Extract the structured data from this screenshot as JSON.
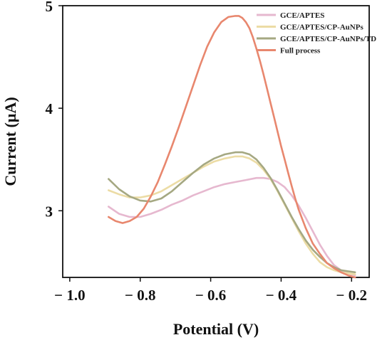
{
  "chart_data": {
    "type": "line",
    "xlabel": "Potential (V)",
    "ylabel": "Current (µA)",
    "xlim": [
      -1.02,
      -0.15
    ],
    "ylim": [
      2.35,
      5.0
    ],
    "x_ticks": [
      -1.0,
      -0.8,
      -0.6,
      -0.4,
      -0.2
    ],
    "x_tick_labels": [
      "− 1.0",
      "− 0.8",
      "− 0.6",
      "− 0.4",
      "− 0.2"
    ],
    "y_ticks": [
      3,
      4,
      5
    ],
    "y_tick_labels": [
      "3",
      "4",
      "5"
    ],
    "legend_position": "top-right",
    "grid": false,
    "series": [
      {
        "name": "GCE/APTES",
        "color": "#e6b8cf",
        "x": [
          -0.89,
          -0.86,
          -0.83,
          -0.8,
          -0.77,
          -0.74,
          -0.71,
          -0.68,
          -0.65,
          -0.62,
          -0.59,
          -0.56,
          -0.53,
          -0.5,
          -0.47,
          -0.45,
          -0.43,
          -0.41,
          -0.39,
          -0.37,
          -0.35,
          -0.33,
          -0.31,
          -0.29,
          -0.27,
          -0.25,
          -0.23,
          -0.21,
          -0.19
        ],
        "y": [
          3.04,
          2.97,
          2.94,
          2.94,
          2.97,
          3.01,
          3.06,
          3.1,
          3.15,
          3.19,
          3.23,
          3.26,
          3.28,
          3.3,
          3.32,
          3.32,
          3.31,
          3.28,
          3.23,
          3.15,
          3.05,
          2.93,
          2.8,
          2.67,
          2.56,
          2.47,
          2.42,
          2.39,
          2.37
        ]
      },
      {
        "name": "GCE/APTES/CP-AuNPs",
        "color": "#ecdca5",
        "x": [
          -0.89,
          -0.86,
          -0.83,
          -0.8,
          -0.77,
          -0.74,
          -0.71,
          -0.68,
          -0.65,
          -0.62,
          -0.59,
          -0.56,
          -0.53,
          -0.51,
          -0.49,
          -0.47,
          -0.45,
          -0.43,
          -0.41,
          -0.39,
          -0.37,
          -0.35,
          -0.33,
          -0.31,
          -0.29,
          -0.27,
          -0.25,
          -0.23,
          -0.21,
          -0.19
        ],
        "y": [
          3.2,
          3.16,
          3.13,
          3.13,
          3.15,
          3.19,
          3.25,
          3.31,
          3.37,
          3.43,
          3.48,
          3.51,
          3.53,
          3.53,
          3.51,
          3.47,
          3.4,
          3.31,
          3.19,
          3.06,
          2.93,
          2.8,
          2.68,
          2.58,
          2.5,
          2.45,
          2.42,
          2.4,
          2.39,
          2.38
        ]
      },
      {
        "name": "GCE/APTES/CP-AuNPs/TD",
        "color": "#a5a882",
        "x": [
          -0.89,
          -0.86,
          -0.83,
          -0.8,
          -0.77,
          -0.74,
          -0.71,
          -0.68,
          -0.65,
          -0.62,
          -0.59,
          -0.56,
          -0.53,
          -0.51,
          -0.49,
          -0.47,
          -0.45,
          -0.43,
          -0.41,
          -0.39,
          -0.37,
          -0.35,
          -0.33,
          -0.31,
          -0.29,
          -0.27,
          -0.25,
          -0.23,
          -0.21,
          -0.19
        ],
        "y": [
          3.31,
          3.21,
          3.14,
          3.1,
          3.09,
          3.12,
          3.19,
          3.28,
          3.37,
          3.45,
          3.51,
          3.55,
          3.57,
          3.57,
          3.55,
          3.5,
          3.42,
          3.32,
          3.2,
          3.07,
          2.94,
          2.82,
          2.71,
          2.62,
          2.55,
          2.49,
          2.45,
          2.42,
          2.41,
          2.4
        ]
      },
      {
        "name": "Full process",
        "color": "#e8876e",
        "x": [
          -0.89,
          -0.87,
          -0.85,
          -0.83,
          -0.81,
          -0.79,
          -0.77,
          -0.75,
          -0.73,
          -0.71,
          -0.69,
          -0.67,
          -0.65,
          -0.63,
          -0.61,
          -0.59,
          -0.57,
          -0.55,
          -0.53,
          -0.52,
          -0.51,
          -0.5,
          -0.49,
          -0.48,
          -0.47,
          -0.46,
          -0.45,
          -0.44,
          -0.43,
          -0.42,
          -0.41,
          -0.4,
          -0.39,
          -0.38,
          -0.37,
          -0.36,
          -0.35,
          -0.33,
          -0.31,
          -0.29,
          -0.27,
          -0.25,
          -0.23,
          -0.21,
          -0.19
        ],
        "y": [
          2.94,
          2.9,
          2.88,
          2.9,
          2.94,
          3.02,
          3.14,
          3.28,
          3.45,
          3.63,
          3.82,
          4.02,
          4.22,
          4.42,
          4.6,
          4.74,
          4.84,
          4.89,
          4.9,
          4.9,
          4.88,
          4.84,
          4.78,
          4.69,
          4.58,
          4.46,
          4.33,
          4.19,
          4.05,
          3.91,
          3.77,
          3.63,
          3.5,
          3.37,
          3.24,
          3.12,
          3.01,
          2.83,
          2.68,
          2.58,
          2.49,
          2.44,
          2.4,
          2.37,
          2.35
        ]
      }
    ]
  }
}
